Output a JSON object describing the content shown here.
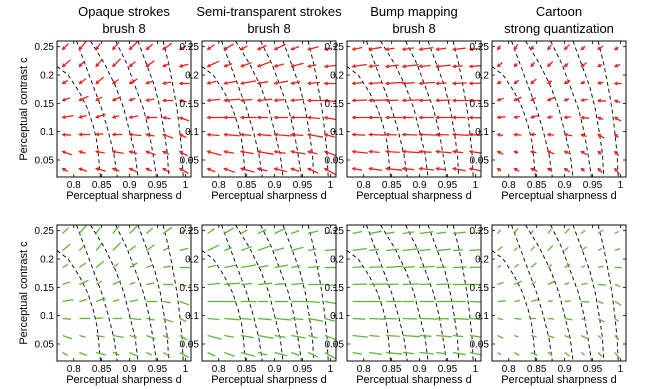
{
  "chart_data": {
    "type": "quiver",
    "columns": [
      {
        "title_lines": [
          "Opaque strokes",
          "brush 8"
        ]
      },
      {
        "title_lines": [
          "Semi-transparent strokes",
          "brush 8"
        ]
      },
      {
        "title_lines": [
          "Bump mapping",
          "brush 8"
        ]
      },
      {
        "title_lines": [
          "Cartoon",
          "strong quantization"
        ]
      }
    ],
    "xlabel": "Perceptual sharpness d",
    "ylabel": "Perceptual contrast c",
    "xlim": [
      0.77,
      1.01
    ],
    "ylim": [
      0.02,
      0.26
    ],
    "xticks": [
      0.8,
      0.85,
      0.9,
      0.95,
      1
    ],
    "xtick_labels": [
      "0.8",
      "0.85",
      "0.9",
      "0.95",
      "1"
    ],
    "yticks": [
      0.05,
      0.1,
      0.15,
      0.2,
      0.25
    ],
    "ytick_labels": [
      "0.05",
      "0.1",
      "0.15",
      "0.2",
      "0.25"
    ],
    "rows": [
      {
        "color": "#e8231f",
        "arrowheads": true
      },
      {
        "color": "#5cb833",
        "arrowheads": false
      }
    ],
    "grid_x": [
      0.78,
      0.81,
      0.84,
      0.87,
      0.9,
      0.93,
      0.96,
      0.99
    ],
    "grid_y": [
      0.035,
      0.065,
      0.095,
      0.125,
      0.155,
      0.185,
      0.215,
      0.245
    ],
    "contour_levels": [
      [
        [
          0.805,
          0.26
        ],
        [
          0.82,
          0.22
        ],
        [
          0.835,
          0.18
        ],
        [
          0.85,
          0.14
        ],
        [
          0.862,
          0.1
        ],
        [
          0.872,
          0.06
        ],
        [
          0.878,
          0.02
        ]
      ],
      [
        [
          0.83,
          0.26
        ],
        [
          0.855,
          0.22
        ],
        [
          0.875,
          0.18
        ],
        [
          0.89,
          0.14
        ],
        [
          0.9,
          0.1
        ],
        [
          0.91,
          0.06
        ],
        [
          0.915,
          0.02
        ]
      ],
      [
        [
          0.875,
          0.26
        ],
        [
          0.895,
          0.22
        ],
        [
          0.91,
          0.18
        ],
        [
          0.925,
          0.14
        ],
        [
          0.935,
          0.1
        ],
        [
          0.942,
          0.06
        ],
        [
          0.948,
          0.02
        ]
      ],
      [
        [
          0.915,
          0.26
        ],
        [
          0.93,
          0.22
        ],
        [
          0.945,
          0.18
        ],
        [
          0.955,
          0.14
        ],
        [
          0.962,
          0.1
        ],
        [
          0.968,
          0.06
        ],
        [
          0.97,
          0.02
        ]
      ],
      [
        [
          0.96,
          0.26
        ],
        [
          0.97,
          0.22
        ],
        [
          0.978,
          0.18
        ],
        [
          0.985,
          0.14
        ],
        [
          0.99,
          0.1
        ],
        [
          0.994,
          0.06
        ],
        [
          0.996,
          0.02
        ]
      ],
      [
        [
          0.77,
          0.215
        ],
        [
          0.79,
          0.2
        ],
        [
          0.81,
          0.17
        ],
        [
          0.825,
          0.14
        ],
        [
          0.835,
          0.11
        ],
        [
          0.842,
          0.08
        ],
        [
          0.846,
          0.04
        ],
        [
          0.848,
          0.02
        ]
      ]
    ],
    "vector_fields": [
      [
        {
          "angles": [
            -30,
            -20,
            -15,
            -20,
            -25,
            -25,
            -30,
            -30
          ],
          "mag": 0.5
        },
        {
          "angles": [
            -20,
            -15,
            -10,
            -10,
            -15,
            -20,
            -25,
            -30
          ],
          "mag": 0.55
        },
        {
          "angles": [
            -5,
            0,
            5,
            0,
            -5,
            -10,
            -20,
            -25
          ],
          "mag": 0.6
        },
        {
          "angles": [
            10,
            15,
            20,
            15,
            10,
            0,
            -10,
            -20
          ],
          "mag": 0.55
        },
        {
          "angles": [
            20,
            25,
            30,
            25,
            20,
            10,
            0,
            -10
          ],
          "mag": 0.5
        },
        {
          "angles": [
            30,
            35,
            40,
            35,
            30,
            20,
            10,
            0
          ],
          "mag": 0.5
        },
        {
          "angles": [
            40,
            45,
            50,
            45,
            40,
            35,
            25,
            15
          ],
          "mag": 0.55
        },
        {
          "angles": [
            45,
            50,
            55,
            50,
            45,
            40,
            35,
            30
          ],
          "mag": 0.6
        }
      ],
      [
        {
          "angles": [
            -25,
            -20,
            -15,
            -15,
            -15,
            -20,
            -25,
            -30
          ],
          "mag": 0.7
        },
        {
          "angles": [
            -15,
            -10,
            -10,
            -10,
            -10,
            -10,
            -15,
            -20
          ],
          "mag": 0.8
        },
        {
          "angles": [
            -5,
            -5,
            -5,
            -5,
            -5,
            -5,
            -10,
            -15
          ],
          "mag": 0.85
        },
        {
          "angles": [
            0,
            0,
            0,
            0,
            0,
            0,
            -5,
            -10
          ],
          "mag": 0.85
        },
        {
          "angles": [
            5,
            5,
            5,
            5,
            5,
            5,
            0,
            -5
          ],
          "mag": 0.8
        },
        {
          "angles": [
            15,
            10,
            10,
            10,
            10,
            10,
            5,
            0
          ],
          "mag": 0.75
        },
        {
          "angles": [
            25,
            20,
            20,
            20,
            15,
            15,
            10,
            5
          ],
          "mag": 0.7
        },
        {
          "angles": [
            35,
            30,
            30,
            25,
            25,
            20,
            15,
            10
          ],
          "mag": 0.6
        }
      ],
      [
        {
          "angles": [
            -10,
            -8,
            -6,
            -6,
            -6,
            -8,
            -10,
            -12
          ],
          "mag": 0.8
        },
        {
          "angles": [
            -6,
            -5,
            -4,
            -4,
            -4,
            -5,
            -6,
            -8
          ],
          "mag": 0.85
        },
        {
          "angles": [
            -3,
            -2,
            -2,
            -2,
            -2,
            -2,
            -3,
            -4
          ],
          "mag": 0.9
        },
        {
          "angles": [
            0,
            0,
            0,
            0,
            0,
            0,
            0,
            -2
          ],
          "mag": 0.9
        },
        {
          "angles": [
            2,
            2,
            2,
            2,
            2,
            2,
            0,
            0
          ],
          "mag": 0.9
        },
        {
          "angles": [
            5,
            4,
            4,
            4,
            4,
            3,
            2,
            2
          ],
          "mag": 0.85
        },
        {
          "angles": [
            8,
            7,
            6,
            6,
            5,
            5,
            4,
            4
          ],
          "mag": 0.8
        },
        {
          "angles": [
            12,
            10,
            9,
            8,
            8,
            7,
            6,
            6
          ],
          "mag": 0.7
        }
      ],
      [
        {
          "angles": [
            -35,
            -30,
            -25,
            -30,
            -35,
            -40,
            -45,
            -50
          ],
          "mag": 0.35
        },
        {
          "angles": [
            -25,
            -20,
            -15,
            -20,
            -25,
            -30,
            -40,
            -45
          ],
          "mag": 0.35
        },
        {
          "angles": [
            -10,
            -5,
            0,
            -5,
            -10,
            -20,
            -30,
            -40
          ],
          "mag": 0.4
        },
        {
          "angles": [
            5,
            10,
            15,
            10,
            5,
            -5,
            -20,
            -30
          ],
          "mag": 0.4
        },
        {
          "angles": [
            20,
            25,
            30,
            25,
            20,
            10,
            -5,
            -20
          ],
          "mag": 0.4
        },
        {
          "angles": [
            30,
            35,
            40,
            35,
            30,
            25,
            15,
            0
          ],
          "mag": 0.35
        },
        {
          "angles": [
            40,
            45,
            50,
            45,
            40,
            35,
            30,
            20
          ],
          "mag": 0.35
        },
        {
          "angles": [
            50,
            55,
            55,
            50,
            45,
            40,
            35,
            30
          ],
          "mag": 0.35
        }
      ]
    ]
  }
}
